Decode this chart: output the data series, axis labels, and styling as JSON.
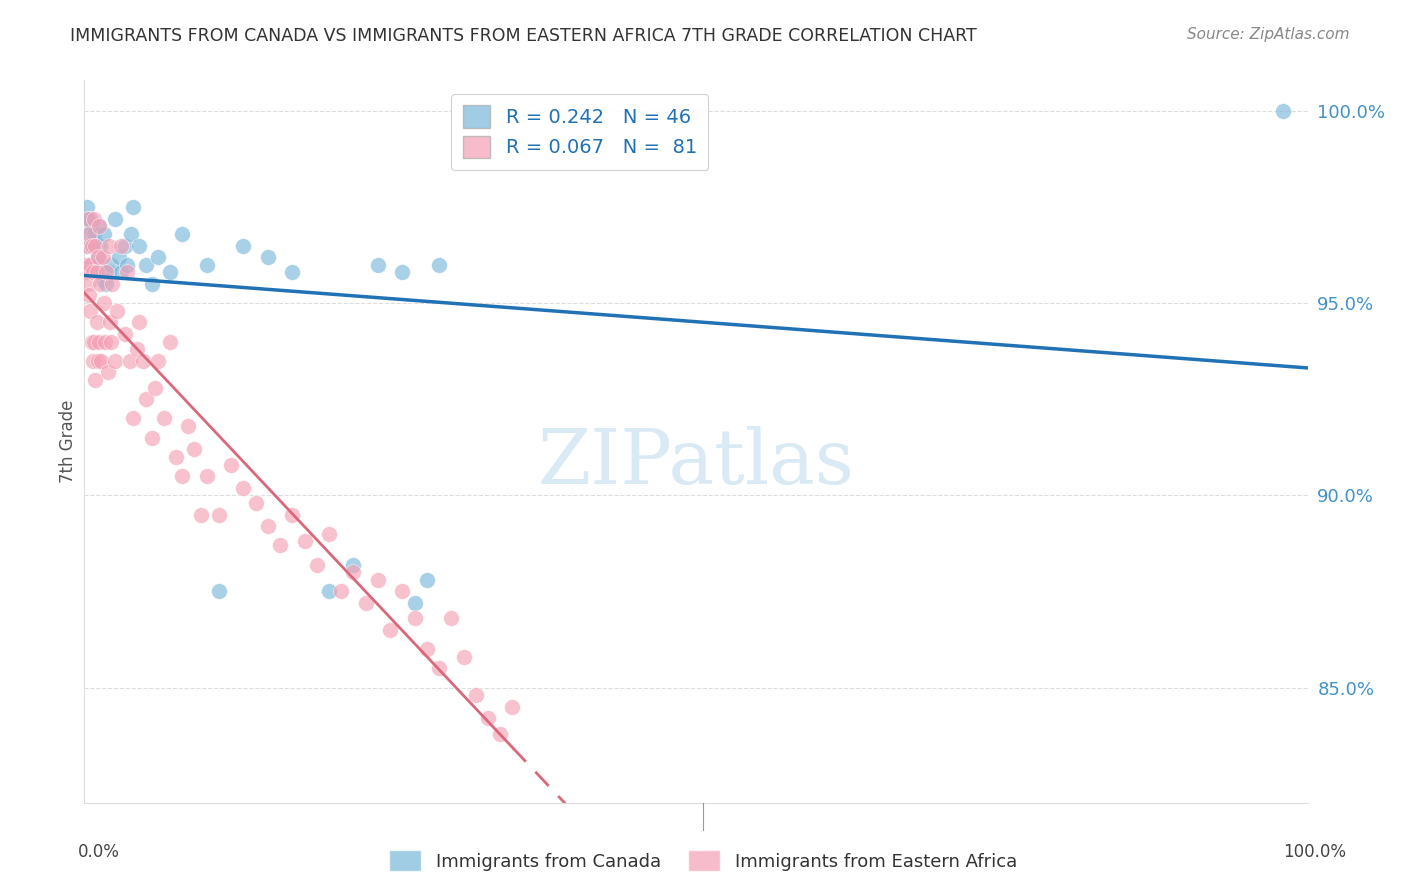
{
  "title": "IMMIGRANTS FROM CANADA VS IMMIGRANTS FROM EASTERN AFRICA 7TH GRADE CORRELATION CHART",
  "source": "Source: ZipAtlas.com",
  "ylabel": "7th Grade",
  "x_min": 0.0,
  "x_max": 1.0,
  "y_min": 0.82,
  "y_max": 1.008,
  "y_tick_values": [
    0.85,
    0.9,
    0.95,
    1.0
  ],
  "y_tick_labels": [
    "85.0%",
    "90.0%",
    "95.0%",
    "100.0%"
  ],
  "canada_R": 0.242,
  "canada_N": 46,
  "africa_R": 0.067,
  "africa_N": 81,
  "canada_color": "#7ab8d9",
  "africa_color": "#f4a0b5",
  "canada_line_color": "#2171b5",
  "africa_line_color": "#d9687a",
  "watermark_color": "#d9eaf5",
  "title_color": "#333333",
  "source_color": "#888888",
  "axis_label_color": "#555555",
  "right_tick_color": "#4292c6",
  "bottom_label_color": "#444444",
  "legend_text_color": "#2171b5",
  "grid_color": "#dddddd",
  "canada_x": [
    0.001,
    0.002,
    0.003,
    0.003,
    0.004,
    0.005,
    0.005,
    0.006,
    0.007,
    0.008,
    0.009,
    0.01,
    0.011,
    0.012,
    0.013,
    0.015,
    0.016,
    0.018,
    0.02,
    0.022,
    0.025,
    0.028,
    0.03,
    0.033,
    0.035,
    0.038,
    0.04,
    0.045,
    0.05,
    0.055,
    0.06,
    0.07,
    0.08,
    0.1,
    0.11,
    0.13,
    0.15,
    0.17,
    0.2,
    0.22,
    0.24,
    0.26,
    0.27,
    0.28,
    0.29,
    0.98
  ],
  "canada_y": [
    0.97,
    0.975,
    0.972,
    0.968,
    0.965,
    0.972,
    0.96,
    0.97,
    0.966,
    0.968,
    0.958,
    0.96,
    0.962,
    0.97,
    0.965,
    0.956,
    0.968,
    0.955,
    0.958,
    0.96,
    0.972,
    0.962,
    0.958,
    0.965,
    0.96,
    0.968,
    0.975,
    0.965,
    0.96,
    0.955,
    0.962,
    0.958,
    0.968,
    0.96,
    0.875,
    0.965,
    0.962,
    0.958,
    0.875,
    0.882,
    0.96,
    0.958,
    0.872,
    0.878,
    0.96,
    1.0
  ],
  "africa_x": [
    0.001,
    0.002,
    0.002,
    0.003,
    0.003,
    0.004,
    0.004,
    0.005,
    0.005,
    0.006,
    0.006,
    0.007,
    0.007,
    0.008,
    0.008,
    0.009,
    0.009,
    0.01,
    0.01,
    0.011,
    0.011,
    0.012,
    0.012,
    0.013,
    0.014,
    0.015,
    0.016,
    0.017,
    0.018,
    0.019,
    0.02,
    0.021,
    0.022,
    0.023,
    0.025,
    0.027,
    0.03,
    0.033,
    0.035,
    0.037,
    0.04,
    0.043,
    0.045,
    0.048,
    0.05,
    0.055,
    0.058,
    0.06,
    0.065,
    0.07,
    0.075,
    0.08,
    0.085,
    0.09,
    0.095,
    0.1,
    0.11,
    0.12,
    0.13,
    0.14,
    0.15,
    0.16,
    0.17,
    0.18,
    0.19,
    0.2,
    0.21,
    0.22,
    0.23,
    0.24,
    0.25,
    0.26,
    0.27,
    0.28,
    0.29,
    0.3,
    0.31,
    0.32,
    0.33,
    0.34,
    0.35
  ],
  "africa_y": [
    0.96,
    0.965,
    0.958,
    0.972,
    0.955,
    0.968,
    0.952,
    0.96,
    0.948,
    0.965,
    0.94,
    0.958,
    0.935,
    0.972,
    0.94,
    0.965,
    0.93,
    0.958,
    0.945,
    0.962,
    0.935,
    0.97,
    0.94,
    0.955,
    0.935,
    0.962,
    0.95,
    0.94,
    0.958,
    0.932,
    0.965,
    0.945,
    0.94,
    0.955,
    0.935,
    0.948,
    0.965,
    0.942,
    0.958,
    0.935,
    0.92,
    0.938,
    0.945,
    0.935,
    0.925,
    0.915,
    0.928,
    0.935,
    0.92,
    0.94,
    0.91,
    0.905,
    0.918,
    0.912,
    0.895,
    0.905,
    0.895,
    0.908,
    0.902,
    0.898,
    0.892,
    0.887,
    0.895,
    0.888,
    0.882,
    0.89,
    0.875,
    0.88,
    0.872,
    0.878,
    0.865,
    0.875,
    0.868,
    0.86,
    0.855,
    0.868,
    0.858,
    0.848,
    0.842,
    0.838,
    0.845
  ],
  "legend_canada_label": "Immigrants from Canada",
  "legend_africa_label": "Immigrants from Eastern Africa"
}
